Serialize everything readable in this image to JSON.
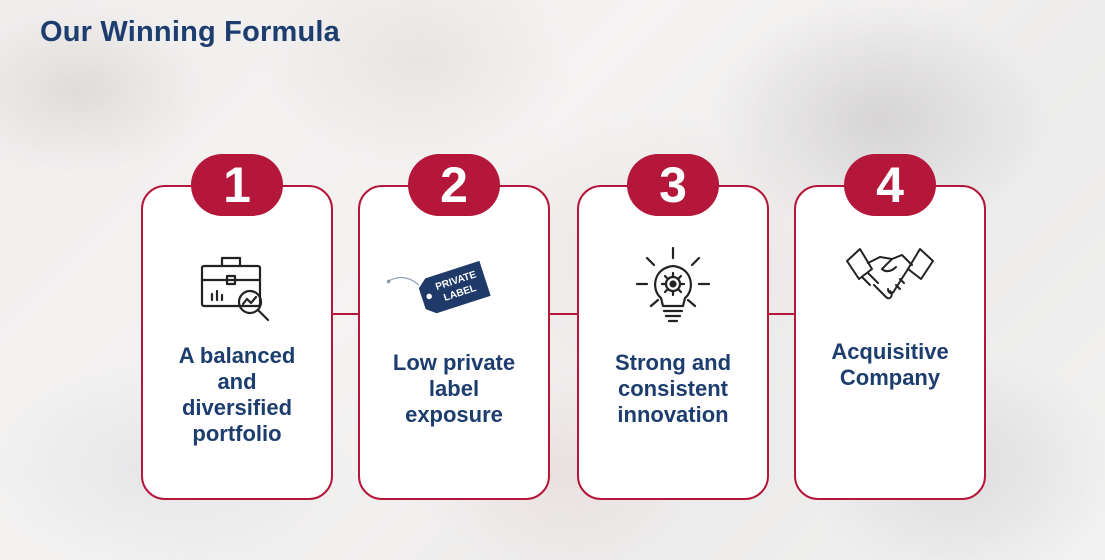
{
  "title": "Our Winning Formula",
  "colors": {
    "accent": "#b5173a",
    "heading": "#1c3d6e",
    "card_bg": "#ffffff"
  },
  "cards": [
    {
      "number": "1",
      "icon": "briefcase-analytics-icon",
      "lines": [
        "A balanced",
        "and",
        "diversified",
        "portfolio"
      ]
    },
    {
      "number": "2",
      "icon": "private-label-tag-icon",
      "tag_line1": "PRIVATE",
      "tag_line2": "LABEL",
      "lines": [
        "Low private",
        "label",
        "exposure"
      ]
    },
    {
      "number": "3",
      "icon": "lightbulb-gear-icon",
      "lines": [
        "Strong and",
        "consistent",
        "innovation"
      ]
    },
    {
      "number": "4",
      "icon": "handshake-icon",
      "lines": [
        "Acquisitive",
        "Company"
      ]
    }
  ]
}
